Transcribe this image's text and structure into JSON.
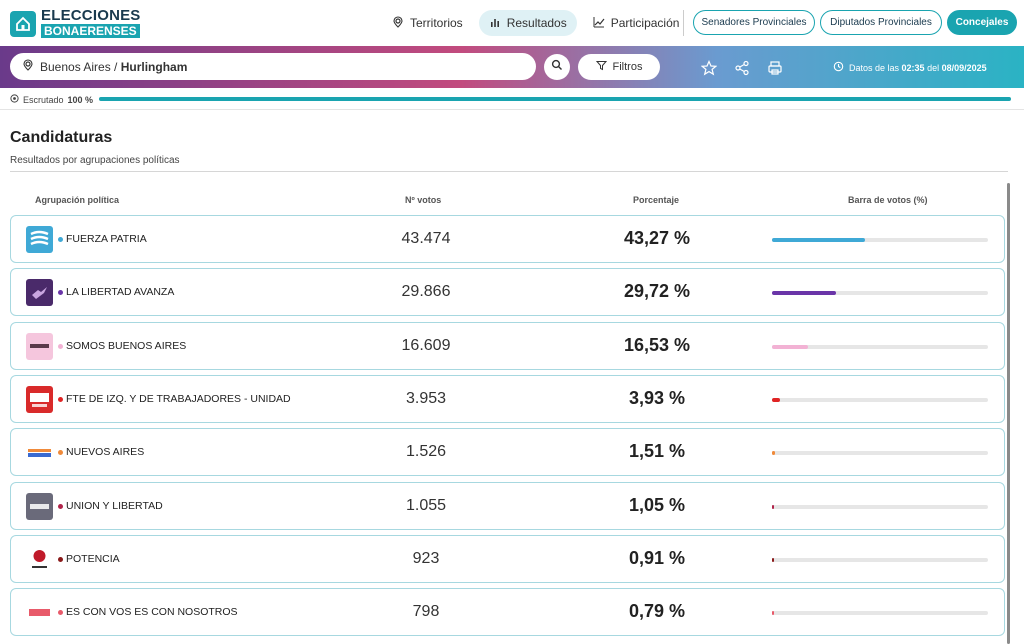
{
  "app": {
    "logo_line1": "ELECCIONES",
    "logo_line2": "BONAERENSES"
  },
  "nav": {
    "items": [
      {
        "label": "Territorios",
        "icon": "map-pin-icon",
        "active": false
      },
      {
        "label": "Resultados",
        "icon": "bar-chart-icon",
        "active": true
      },
      {
        "label": "Participación",
        "icon": "line-chart-icon",
        "active": false
      }
    ]
  },
  "categories": [
    {
      "label": "Senadores Provinciales",
      "active": false
    },
    {
      "label": "Diputados Provinciales",
      "active": false
    },
    {
      "label": "Concejales",
      "active": true
    }
  ],
  "search": {
    "region": "Buenos Aires / ",
    "place": "Hurlingham",
    "filter_label": "Filtros"
  },
  "datetime": {
    "prefix": "Datos de las ",
    "time": "02:35",
    "mid": " del ",
    "date": "08/09/2025"
  },
  "progress": {
    "label": "Escrutado",
    "value_text": "100 %",
    "percent": 100
  },
  "section": {
    "title": "Candidaturas",
    "subtitle": "Resultados por agrupaciones políticas"
  },
  "table": {
    "headers": {
      "party": "Agrupación política",
      "votes": "Nº votos",
      "percent": "Porcentaje",
      "bar": "Barra de votos (%)"
    },
    "rows": [
      {
        "name": "FUERZA PATRIA",
        "votes": "43.474",
        "percent": "43,27 %",
        "value": 43.27,
        "color": "#3fa9d6",
        "logo_bg": "#3fa9d6"
      },
      {
        "name": "LA LIBERTAD AVANZA",
        "votes": "29.866",
        "percent": "29,72 %",
        "value": 29.72,
        "color": "#6a35a8",
        "logo_bg": "#4a2a6a"
      },
      {
        "name": "SOMOS BUENOS AIRES",
        "votes": "16.609",
        "percent": "16,53 %",
        "value": 16.53,
        "color": "#f2b2d4",
        "logo_bg": "#f5c6dd"
      },
      {
        "name": "FTE DE IZQ. Y DE TRABAJADORES - UNIDAD",
        "votes": "3.953",
        "percent": "3,93 %",
        "value": 3.93,
        "color": "#e02424",
        "logo_bg": "#d92a2a"
      },
      {
        "name": "NUEVOS AIRES",
        "votes": "1.526",
        "percent": "1,51 %",
        "value": 1.51,
        "color": "#f08a3a",
        "logo_bg": "#ffffff"
      },
      {
        "name": "UNION Y LIBERTAD",
        "votes": "1.055",
        "percent": "1,05 %",
        "value": 1.05,
        "color": "#b0244a",
        "logo_bg": "#6a6a7a"
      },
      {
        "name": "POTENCIA",
        "votes": "923",
        "percent": "0,91 %",
        "value": 0.91,
        "color": "#8a1a1a",
        "logo_bg": "#ffffff"
      },
      {
        "name": "ES CON VOS ES CON NOSOTROS",
        "votes": "798",
        "percent": "0,79 %",
        "value": 0.79,
        "color": "#e85a6a",
        "logo_bg": "#ffffff"
      }
    ]
  }
}
